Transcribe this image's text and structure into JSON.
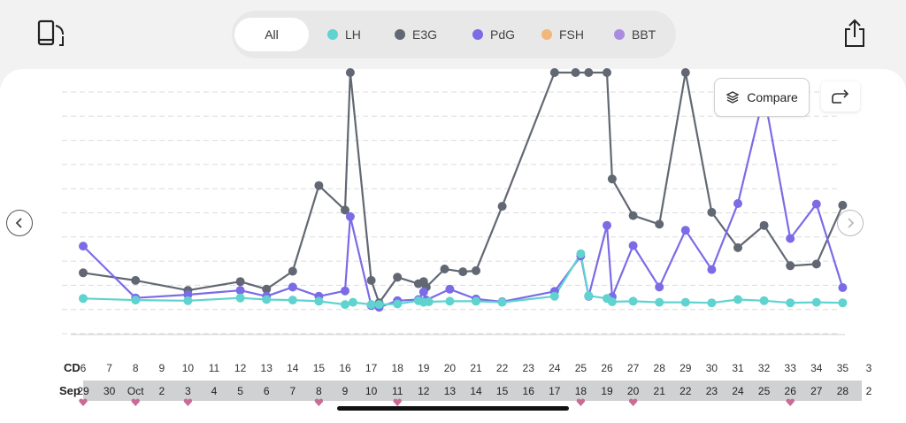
{
  "filters": [
    {
      "label": "All",
      "color": ""
    },
    {
      "label": "LH",
      "color": "#5fd3cf"
    },
    {
      "label": "E3G",
      "color": "#626873"
    },
    {
      "label": "PdG",
      "color": "#7b6be6"
    },
    {
      "label": "FSH",
      "color": "#f0b87a"
    },
    {
      "label": "BBT",
      "color": "#a98ce0"
    }
  ],
  "compare_label": "Compare",
  "axis": {
    "cd_label": "CD",
    "month_label": "Sep",
    "cd_ticks": [
      "6",
      "7",
      "8",
      "9",
      "10",
      "11",
      "12",
      "13",
      "14",
      "15",
      "16",
      "17",
      "18",
      "19",
      "20",
      "21",
      "22",
      "23",
      "24",
      "25",
      "26",
      "27",
      "28",
      "29",
      "30",
      "31",
      "32",
      "33",
      "34",
      "35",
      "3"
    ],
    "date_ticks": [
      "29",
      "30",
      "Oct",
      "2",
      "3",
      "4",
      "5",
      "6",
      "7",
      "8",
      "9",
      "10",
      "11",
      "12",
      "13",
      "14",
      "15",
      "16",
      "17",
      "18",
      "19",
      "20",
      "21",
      "22",
      "23",
      "24",
      "25",
      "26",
      "27",
      "28",
      "2"
    ]
  },
  "chart_data": {
    "type": "line",
    "x_unit": "cycle day",
    "xlim": [
      6,
      35
    ],
    "y_axis_labels": "none",
    "grid": "horizontal dashed",
    "series": [
      {
        "name": "E3G",
        "color": "#626873",
        "points": [
          [
            6,
            11.3
          ],
          [
            8,
            9.9
          ],
          [
            10,
            8.1
          ],
          [
            12,
            9.7
          ],
          [
            13,
            8.3
          ],
          [
            14,
            11.6
          ],
          [
            15,
            27.3
          ],
          [
            16,
            22.8
          ],
          [
            16.2,
            48.0
          ],
          [
            17,
            9.9
          ],
          [
            17.3,
            5.8
          ],
          [
            18,
            10.5
          ],
          [
            18.8,
            9.3
          ],
          [
            19,
            9.7
          ],
          [
            19.1,
            8.7
          ],
          [
            19.8,
            12.0
          ],
          [
            20.5,
            11.5
          ],
          [
            21,
            11.7
          ],
          [
            22,
            23.5
          ],
          [
            24,
            48.0
          ],
          [
            24.8,
            48.0
          ],
          [
            25.3,
            48.0
          ],
          [
            26,
            48.0
          ],
          [
            26.2,
            28.5
          ],
          [
            27,
            21.8
          ],
          [
            28,
            20.2
          ],
          [
            29,
            48.0
          ],
          [
            30,
            22.4
          ],
          [
            31,
            15.9
          ],
          [
            32,
            20.0
          ],
          [
            33,
            12.6
          ],
          [
            34,
            12.9
          ],
          [
            35,
            23.7
          ]
        ]
      },
      {
        "name": "PdG",
        "color": "#7b6be6",
        "points": [
          [
            6,
            16.2
          ],
          [
            8,
            6.7
          ],
          [
            10,
            7.3
          ],
          [
            12,
            8.1
          ],
          [
            13,
            7.0
          ],
          [
            14,
            8.7
          ],
          [
            15,
            7.0
          ],
          [
            16,
            8.0
          ],
          [
            16.2,
            21.6
          ],
          [
            17,
            5.3
          ],
          [
            17.3,
            5.0
          ],
          [
            18,
            6.2
          ],
          [
            18.8,
            6.4
          ],
          [
            19,
            7.8
          ],
          [
            19.1,
            6.3
          ],
          [
            20,
            8.3
          ],
          [
            21,
            6.5
          ],
          [
            22,
            6.0
          ],
          [
            24,
            7.9
          ],
          [
            25,
            14.4
          ],
          [
            25.3,
            7.0
          ],
          [
            26,
            20.0
          ],
          [
            26.2,
            6.9
          ],
          [
            27,
            16.3
          ],
          [
            28,
            8.7
          ],
          [
            29,
            19.1
          ],
          [
            30,
            11.9
          ],
          [
            31,
            24.0
          ],
          [
            32,
            44.0
          ],
          [
            33,
            17.6
          ],
          [
            34,
            23.9
          ],
          [
            35,
            8.6
          ]
        ]
      },
      {
        "name": "LH",
        "color": "#5fd3cf",
        "points": [
          [
            6,
            6.6
          ],
          [
            8,
            6.3
          ],
          [
            10,
            6.2
          ],
          [
            12,
            6.7
          ],
          [
            13,
            6.4
          ],
          [
            14,
            6.3
          ],
          [
            15,
            6.1
          ],
          [
            16,
            5.5
          ],
          [
            16.3,
            5.9
          ],
          [
            17,
            5.5
          ],
          [
            17.3,
            5.5
          ],
          [
            18,
            5.6
          ],
          [
            18.8,
            6.2
          ],
          [
            19,
            5.9
          ],
          [
            19.2,
            6.0
          ],
          [
            20,
            6.1
          ],
          [
            21,
            6.1
          ],
          [
            22,
            5.9
          ],
          [
            24,
            7.0
          ],
          [
            25,
            14.8
          ],
          [
            25.3,
            7.1
          ],
          [
            26,
            6.6
          ],
          [
            26.2,
            6.0
          ],
          [
            27,
            6.1
          ],
          [
            28,
            5.9
          ],
          [
            29,
            5.9
          ],
          [
            30,
            5.8
          ],
          [
            31,
            6.4
          ],
          [
            32,
            6.2
          ],
          [
            33,
            5.8
          ],
          [
            34,
            5.9
          ],
          [
            35,
            5.8
          ]
        ]
      }
    ],
    "markers_on_dates": [
      "29",
      "Oct",
      "3",
      "8",
      "11",
      "18",
      "20",
      "26"
    ]
  }
}
